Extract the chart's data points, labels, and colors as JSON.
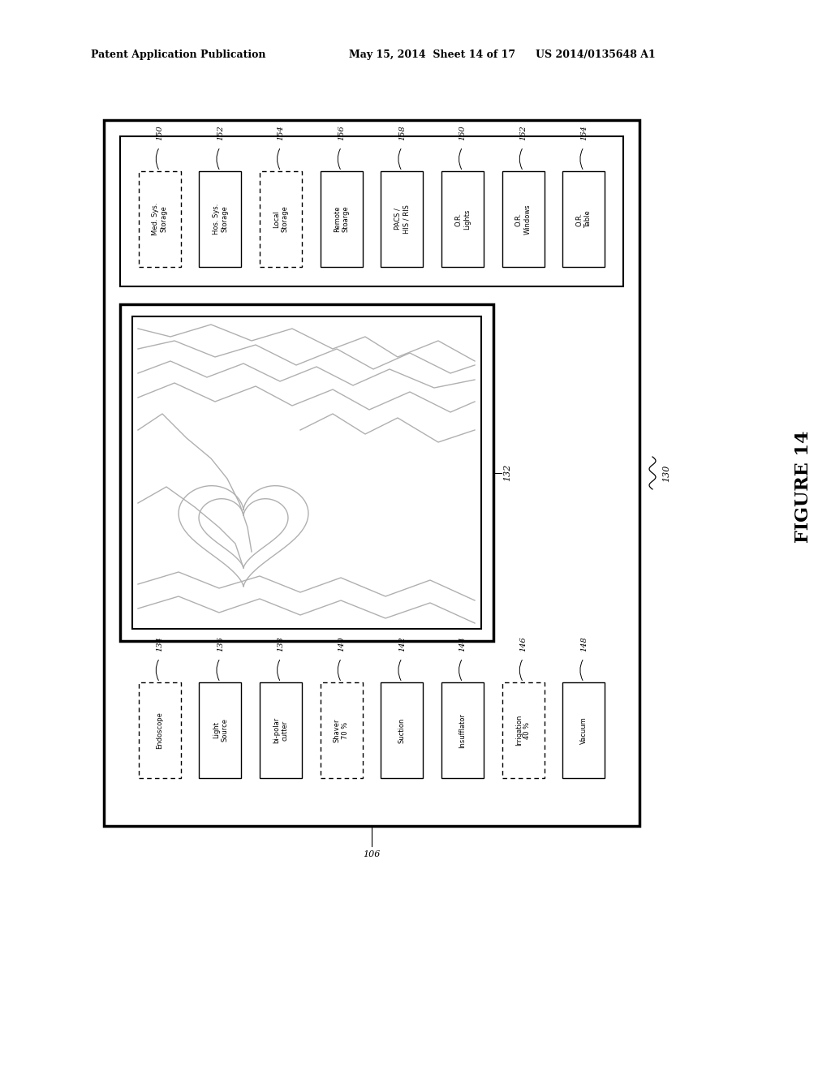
{
  "bg_color": "#ffffff",
  "header_left": "Patent Application Publication",
  "header_mid": "May 15, 2014  Sheet 14 of 17",
  "header_right": "US 2014/0135648 A1",
  "figure_label": "FIGURE 14",
  "top_boxes": [
    {
      "label": "Med. Sys.\nStorage",
      "num": "150",
      "dashed": true
    },
    {
      "label": "Hos. Sys.\nStorage",
      "num": "152",
      "dashed": false
    },
    {
      "label": "Local\nStorage",
      "num": "154",
      "dashed": true
    },
    {
      "label": "Remote\nStoarge",
      "num": "156",
      "dashed": false
    },
    {
      "label": "PACS /\nHIS / RIS",
      "num": "158",
      "dashed": false
    },
    {
      "label": "O.R.\nLights",
      "num": "160",
      "dashed": false
    },
    {
      "label": "O.R.\nWindows",
      "num": "162",
      "dashed": false
    },
    {
      "label": "O.R.\nTable",
      "num": "164",
      "dashed": false
    }
  ],
  "bottom_boxes": [
    {
      "label": "Endoscope",
      "num": "134",
      "dashed": true
    },
    {
      "label": "Light\nSource",
      "num": "136",
      "dashed": false
    },
    {
      "label": "bi-polar\ncutter",
      "num": "138",
      "dashed": false
    },
    {
      "label": "Shaver\n70 %",
      "num": "140",
      "dashed": true
    },
    {
      "label": "Suction",
      "num": "142",
      "dashed": false
    },
    {
      "label": "Insufflator",
      "num": "144",
      "dashed": false
    },
    {
      "label": "Irrigation\n40 %",
      "num": "146",
      "dashed": true
    },
    {
      "label": "Vacuum",
      "num": "148",
      "dashed": false
    }
  ]
}
